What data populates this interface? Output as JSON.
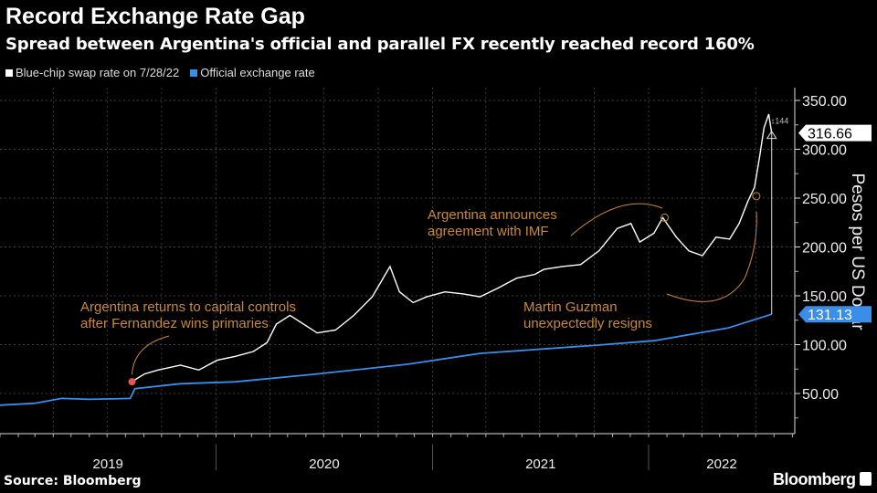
{
  "title": "Record Exchange Rate Gap",
  "subtitle": "Spread between Argentina's official and parallel FX recently reached record 160%",
  "source": "Source: Bloomberg",
  "brand": "Bloomberg",
  "chart_data": {
    "type": "line",
    "ylabel": "Pesos per US Dollar",
    "ylim": [
      0,
      360
    ],
    "yticks": [
      "50.00",
      "100.00",
      "150.00",
      "200.00",
      "250.00",
      "300.00",
      "350.00"
    ],
    "xlim": [
      "2019-01-01",
      "2022-09-05"
    ],
    "xticks": [
      "2019",
      "2020",
      "2021",
      "2022"
    ],
    "grid": true,
    "legend_placement": "top-left",
    "series": [
      {
        "name": "Blue-chip swap rate on 7/28/22",
        "color": "#ffffff",
        "last_value_label": "316.66",
        "points": [
          [
            "2019-08-12",
            62
          ],
          [
            "2019-08-17",
            64
          ],
          [
            "2019-09-02",
            70
          ],
          [
            "2019-09-25",
            74
          ],
          [
            "2019-11-02",
            79
          ],
          [
            "2019-12-03",
            74
          ],
          [
            "2020-01-03",
            84
          ],
          [
            "2020-02-03",
            88
          ],
          [
            "2020-03-04",
            93
          ],
          [
            "2020-03-27",
            102
          ],
          [
            "2020-04-12",
            121
          ],
          [
            "2020-05-05",
            130
          ],
          [
            "2020-05-28",
            121
          ],
          [
            "2020-06-20",
            112
          ],
          [
            "2020-07-21",
            115
          ],
          [
            "2020-08-21",
            130
          ],
          [
            "2020-09-21",
            149
          ],
          [
            "2020-10-21",
            180
          ],
          [
            "2020-11-06",
            154
          ],
          [
            "2020-11-29",
            143
          ],
          [
            "2020-12-22",
            149
          ],
          [
            "2021-01-22",
            154
          ],
          [
            "2021-02-22",
            152
          ],
          [
            "2021-03-22",
            149
          ],
          [
            "2021-04-22",
            158
          ],
          [
            "2021-05-23",
            168
          ],
          [
            "2021-06-23",
            172
          ],
          [
            "2021-07-08",
            177
          ],
          [
            "2021-08-08",
            180
          ],
          [
            "2021-09-08",
            182
          ],
          [
            "2021-10-09",
            196
          ],
          [
            "2021-11-09",
            219
          ],
          [
            "2021-12-02",
            224
          ],
          [
            "2021-12-17",
            205
          ],
          [
            "2022-01-10",
            214
          ],
          [
            "2022-01-25",
            230
          ],
          [
            "2022-02-17",
            210
          ],
          [
            "2022-03-10",
            196
          ],
          [
            "2022-04-02",
            191
          ],
          [
            "2022-04-25",
            210
          ],
          [
            "2022-05-18",
            208
          ],
          [
            "2022-06-03",
            224
          ],
          [
            "2022-06-18",
            247
          ],
          [
            "2022-06-29",
            261
          ],
          [
            "2022-07-08",
            294
          ],
          [
            "2022-07-15",
            322
          ],
          [
            "2022-07-23",
            336
          ],
          [
            "2022-07-28",
            316.66
          ]
        ]
      },
      {
        "name": "Official exchange rate",
        "color": "#3b8ee8",
        "last_value_label": "131.13",
        "points": [
          [
            "2019-01-01",
            38
          ],
          [
            "2019-03-01",
            40
          ],
          [
            "2019-04-15",
            45
          ],
          [
            "2019-06-01",
            44
          ],
          [
            "2019-08-09",
            45
          ],
          [
            "2019-08-17",
            55
          ],
          [
            "2019-11-02",
            60
          ],
          [
            "2020-02-03",
            62
          ],
          [
            "2020-06-20",
            70
          ],
          [
            "2020-11-21",
            80
          ],
          [
            "2021-03-22",
            91
          ],
          [
            "2021-09-25",
            99
          ],
          [
            "2022-01-10",
            104
          ],
          [
            "2022-05-15",
            117
          ],
          [
            "2022-07-28",
            131.13
          ]
        ]
      }
    ],
    "annotations": [
      {
        "text": [
          "Argentina returns to capital controls",
          "after Fernandez wins primaries"
        ],
        "date": "2019-08-12",
        "value": 62
      },
      {
        "text": [
          "Argentina announces",
          "agreement with IMF"
        ],
        "date": "2022-01-28",
        "value": 230
      },
      {
        "text": [
          "Martin Guzman",
          "unexpectedly resigns"
        ],
        "date": "2022-07-02",
        "value": 252
      }
    ],
    "gap_label": "144",
    "annotation_color": "#c8893a",
    "highlight_color": "#e8574a"
  }
}
